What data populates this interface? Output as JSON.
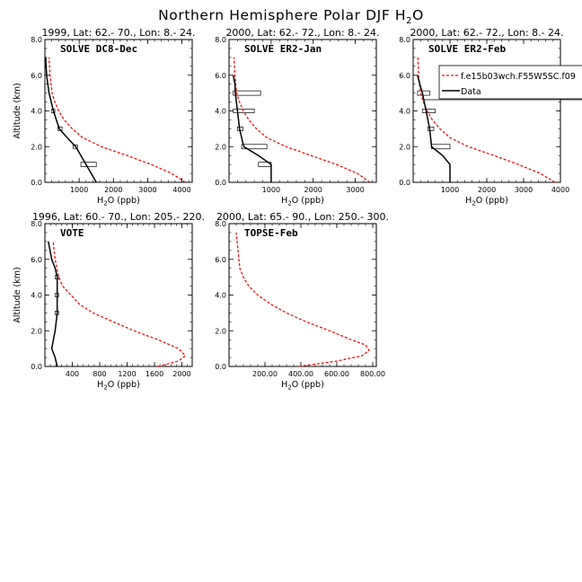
{
  "figure": {
    "title_main": "Northern Hemisphere Polar DJF H",
    "title_sub": "2",
    "title_end": "O"
  },
  "legend": {
    "model_label": "f.e15b03wch.F55W5SC.f09",
    "data_label": "Data"
  },
  "colors": {
    "model": "#ee1111",
    "data": "#000000"
  },
  "chart_data": [
    {
      "type": "line",
      "title": "1999, Lat: 62.- 70., Lon: 8.- 24.",
      "tag": "SOLVE DC8-Dec",
      "xlabel": "H2O (ppb)",
      "ylabel": "Altitude (km)",
      "xlim": [
        0,
        4300
      ],
      "ylim": [
        0,
        8
      ],
      "xticks": [
        1000,
        2000,
        3000,
        4000
      ],
      "xtick_labels": [
        "1000",
        "2000",
        "3000",
        "4000"
      ],
      "yticks": [
        0,
        2,
        4,
        6,
        8
      ],
      "ytick_labels": [
        "0.0",
        "2.0",
        "4.0",
        "6.0",
        "8.0"
      ],
      "series": [
        {
          "name": "f.e15b03wch.F55W5SC.f09",
          "style": "dashed",
          "x": [
            4100,
            3700,
            3100,
            2400,
            1650,
            1100,
            800,
            560,
            400,
            290,
            210,
            150,
            120
          ],
          "y": [
            0,
            0.5,
            1,
            1.5,
            2,
            2.5,
            3,
            3.5,
            4,
            4.5,
            5,
            6,
            7
          ]
        },
        {
          "name": "Data",
          "style": "solid",
          "x": [
            1500,
            1200,
            900,
            650,
            420,
            250,
            120,
            50,
            20
          ],
          "y": [
            0,
            1,
            2,
            2.5,
            3,
            4,
            5,
            6,
            7
          ]
        }
      ],
      "boxes": [
        {
          "x0": 1050,
          "x1": 1500,
          "y": 1,
          "h": 0.25
        },
        {
          "x0": 820,
          "x1": 950,
          "y": 2,
          "h": 0.2
        },
        {
          "x0": 380,
          "x1": 500,
          "y": 3,
          "h": 0.2
        },
        {
          "x0": 190,
          "x1": 290,
          "y": 4,
          "h": 0.2
        }
      ]
    },
    {
      "type": "line",
      "title": "2000, Lat: 62.- 72., Lon: 8.- 24.",
      "tag": "SOLVE ER2-Jan",
      "xlabel": "H2O (ppb)",
      "ylabel": "",
      "xlim": [
        0,
        3500
      ],
      "ylim": [
        0,
        8
      ],
      "xticks": [
        1000,
        2000,
        3000
      ],
      "xtick_labels": [
        "1000",
        "2000",
        "3000"
      ],
      "yticks": [
        0,
        2,
        4,
        6,
        8
      ],
      "ytick_labels": [
        "0.0",
        "2.0",
        "4.0",
        "6.0",
        "8.0"
      ],
      "series": [
        {
          "name": "f.e15b03wch.F55W5SC.f09",
          "style": "dashed",
          "x": [
            3350,
            3050,
            2550,
            1950,
            1350,
            900,
            650,
            470,
            340,
            250,
            180,
            140,
            120
          ],
          "y": [
            0,
            0.5,
            1,
            1.5,
            2,
            2.5,
            3,
            3.5,
            4,
            4.5,
            5,
            6,
            7
          ]
        },
        {
          "name": "Data",
          "style": "solid",
          "x": [
            1000,
            1000,
            700,
            350,
            250,
            200,
            150,
            140,
            100
          ],
          "y": [
            0,
            1,
            1.5,
            2,
            3,
            4,
            5,
            5.5,
            6
          ]
        }
      ],
      "boxes": [
        {
          "x0": 700,
          "x1": 1000,
          "y": 1,
          "h": 0.25
        },
        {
          "x0": 300,
          "x1": 900,
          "y": 2,
          "h": 0.25
        },
        {
          "x0": 200,
          "x1": 330,
          "y": 3,
          "h": 0.2
        },
        {
          "x0": 100,
          "x1": 600,
          "y": 4,
          "h": 0.2
        },
        {
          "x0": 100,
          "x1": 750,
          "y": 5,
          "h": 0.25
        }
      ]
    },
    {
      "type": "line",
      "title": "2000, Lat: 62.- 72., Lon: 8.- 24.",
      "tag": "SOLVE ER2-Feb",
      "xlabel": "H2O (ppb)",
      "ylabel": "",
      "xlim": [
        0,
        4000
      ],
      "ylim": [
        0,
        8
      ],
      "xticks": [
        1000,
        2000,
        3000,
        4000
      ],
      "xtick_labels": [
        "1000",
        "2000",
        "3000",
        "4000"
      ],
      "yticks": [
        0,
        2,
        4,
        6,
        8
      ],
      "ytick_labels": [
        "0.0",
        "2.0",
        "4.0",
        "6.0",
        "8.0"
      ],
      "series": [
        {
          "name": "f.e15b03wch.F55W5SC.f09",
          "style": "dashed",
          "x": [
            3850,
            3450,
            2850,
            2200,
            1500,
            1000,
            730,
            520,
            380,
            280,
            200,
            150,
            130
          ],
          "y": [
            0,
            0.5,
            1,
            1.5,
            2,
            2.5,
            3,
            3.5,
            4,
            4.5,
            5,
            6,
            7
          ]
        },
        {
          "name": "Data",
          "style": "solid",
          "x": [
            1000,
            1000,
            800,
            500,
            450,
            350,
            250,
            180,
            120
          ],
          "y": [
            0,
            1,
            1.5,
            2,
            3,
            4,
            5,
            5.5,
            6
          ]
        }
      ],
      "boxes": [
        {
          "x0": 500,
          "x1": 1000,
          "y": 2,
          "h": 0.25
        },
        {
          "x0": 400,
          "x1": 560,
          "y": 3,
          "h": 0.2
        },
        {
          "x0": 250,
          "x1": 600,
          "y": 4,
          "h": 0.2
        },
        {
          "x0": 120,
          "x1": 450,
          "y": 5,
          "h": 0.25
        }
      ]
    },
    {
      "type": "line",
      "title": "1996, Lat: 60.- 70., Lon: 205.- 220.",
      "tag": "VOTE",
      "xlabel": "H2O (ppb)",
      "ylabel": "Altitude (km)",
      "xlim": [
        0,
        2150
      ],
      "ylim": [
        0,
        8
      ],
      "xticks": [
        400,
        800,
        1200,
        1600,
        2000
      ],
      "xtick_labels": [
        "400",
        "800",
        "1200",
        "1600",
        "2000"
      ],
      "yticks": [
        0,
        2,
        4,
        6,
        8
      ],
      "ytick_labels": [
        "0.0",
        "2.0",
        "4.0",
        "6.0",
        "8.0"
      ],
      "series": [
        {
          "name": "f.e15b03wch.F55W5SC.f09",
          "style": "dashed",
          "x": [
            1650,
            1950,
            2050,
            1950,
            1650,
            1300,
            1000,
            700,
            500,
            380,
            260,
            200,
            150,
            120
          ],
          "y": [
            0,
            0.3,
            0.6,
            1,
            1.5,
            2,
            2.5,
            3,
            3.5,
            4,
            4.5,
            5,
            6,
            7
          ]
        },
        {
          "name": "Data",
          "style": "solid",
          "x": [
            180,
            150,
            100,
            150,
            180,
            180,
            180,
            150,
            100,
            50
          ],
          "y": [
            0,
            0.5,
            1,
            2,
            3,
            4,
            5,
            5.5,
            6,
            7
          ]
        }
      ],
      "boxes": [
        {
          "x0": 150,
          "x1": 200,
          "y": 3,
          "h": 0.2
        },
        {
          "x0": 150,
          "x1": 200,
          "y": 4,
          "h": 0.2
        },
        {
          "x0": 150,
          "x1": 200,
          "y": 5,
          "h": 0.2
        }
      ]
    },
    {
      "type": "line",
      "title": "2000, Lat: 65.- 90., Lon: 250.- 300.",
      "tag": "TOPSE-Feb",
      "xlabel": "H2O (ppb)",
      "ylabel": "",
      "xlim": [
        0,
        820
      ],
      "ylim": [
        0,
        8
      ],
      "xticks": [
        200,
        400,
        600,
        800
      ],
      "xtick_labels": [
        "200.00",
        "400.00",
        "600.00",
        "800.00"
      ],
      "yticks": [
        0,
        2,
        4,
        6,
        8
      ],
      "ytick_labels": [
        "0.0",
        "2.0",
        "4.0",
        "6.0",
        "8.0"
      ],
      "series": [
        {
          "name": "f.e15b03wch.F55W5SC.f09",
          "style": "dashed",
          "x": [
            390,
            600,
            740,
            780,
            760,
            680,
            560,
            430,
            320,
            230,
            160,
            110,
            80,
            60,
            50,
            40
          ],
          "y": [
            0,
            0.3,
            0.6,
            0.9,
            1.2,
            1.5,
            2,
            2.5,
            3,
            3.5,
            4,
            4.5,
            5,
            5.5,
            6.5,
            7.5
          ]
        }
      ],
      "boxes": []
    }
  ]
}
